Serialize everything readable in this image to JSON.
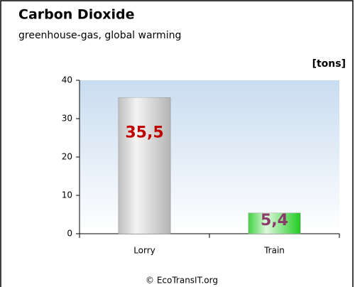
{
  "chart_data": {
    "type": "bar",
    "title": "Carbon Dioxide",
    "subtitle": "greenhouse-gas, global warming",
    "y_label": "[tons]",
    "footer": "© EcoTransIT.org",
    "categories": [
      "Lorry",
      "Train"
    ],
    "values": [
      35.5,
      5.4
    ],
    "value_labels": [
      "35,5",
      "5,4"
    ],
    "colors": [
      "#b4b4b4",
      "#22cc22"
    ],
    "label_colors": [
      "#c00000",
      "#8b3a6b"
    ],
    "ylim": [
      0,
      40
    ],
    "yticks": [
      0,
      10,
      20,
      30,
      40
    ]
  }
}
